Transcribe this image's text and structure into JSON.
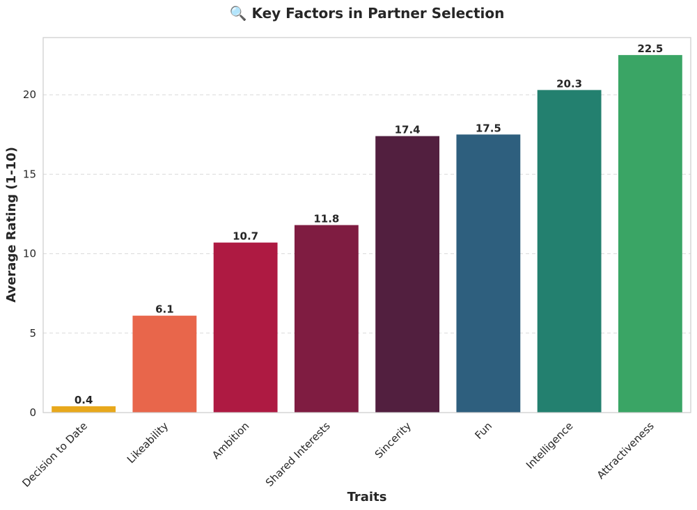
{
  "chart_data": {
    "type": "bar",
    "title": "🔍 Key Factors in Partner Selection",
    "xlabel": "Traits",
    "ylabel": "Average Rating (1-10)",
    "categories": [
      "Decision to Date",
      "Likeability",
      "Ambition",
      "Shared Interests",
      "Sincerity",
      "Fun",
      "Intelligence",
      "Attractiveness"
    ],
    "values": [
      0.4,
      6.1,
      10.7,
      11.8,
      17.4,
      17.5,
      20.3,
      22.5
    ],
    "value_labels": [
      "0.4",
      "6.1",
      "10.7",
      "11.8",
      "17.4",
      "17.5",
      "20.3",
      "22.5"
    ],
    "colors": [
      "#e8a81c",
      "#e8664b",
      "#ae1a42",
      "#7f1c41",
      "#521f3f",
      "#2e5f7e",
      "#23806f",
      "#3aa565"
    ],
    "ylim": [
      0,
      23.6
    ],
    "yticks": [
      0,
      5,
      10,
      15,
      20
    ],
    "ytick_labels": [
      "0",
      "5",
      "10",
      "15",
      "20"
    ],
    "grid": true,
    "legend": "none"
  }
}
